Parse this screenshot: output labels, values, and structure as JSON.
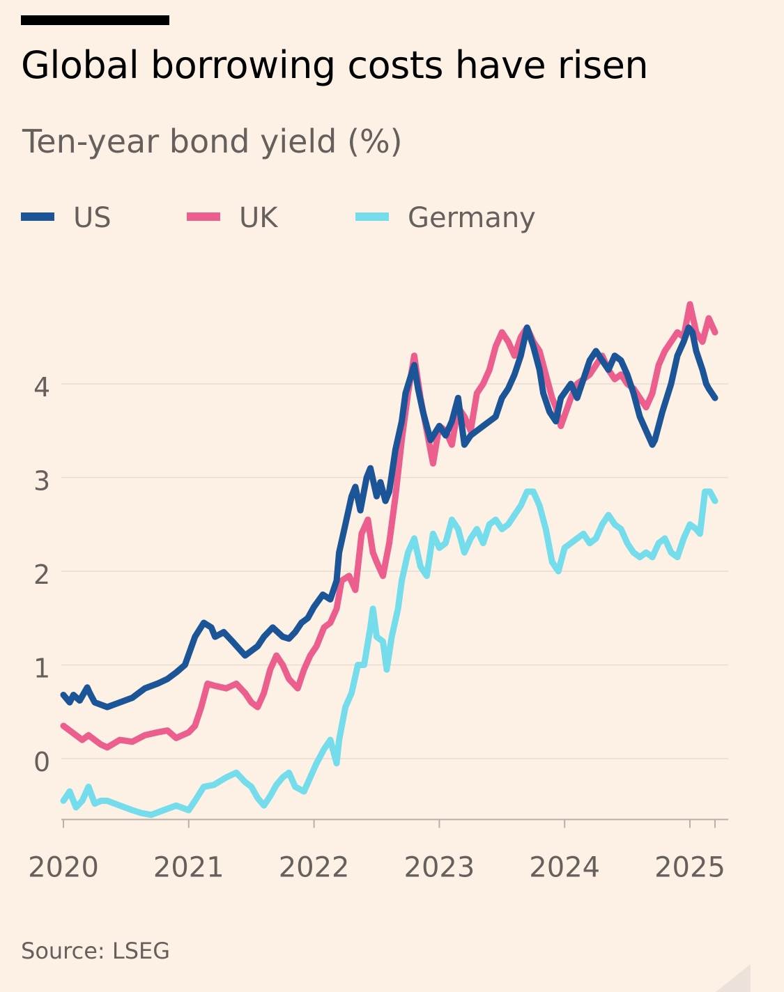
{
  "title": "Global borrowing costs have risen",
  "subtitle": "Ten-year bond yield (%)",
  "source": "Source: LSEG",
  "colors": {
    "US": "#1b5497",
    "UK": "#eb5e8d",
    "Germany": "#75dcec",
    "background": "#fdf1e6",
    "grid": "#e8dbd0",
    "axis": "#66605c"
  },
  "legend": [
    {
      "label": "US",
      "color": "#1b5497"
    },
    {
      "label": "UK",
      "color": "#eb5e8d"
    },
    {
      "label": "Germany",
      "color": "#75dcec"
    }
  ],
  "chart_data": {
    "type": "line",
    "title": "Global borrowing costs have risen",
    "subtitle": "Ten-year bond yield (%)",
    "xlabel": "",
    "ylabel": "",
    "xlim": [
      2020.0,
      2025.2
    ],
    "ylim": [
      -0.65,
      4.9
    ],
    "yticks": [
      0,
      1,
      2,
      3,
      4
    ],
    "yticklabels": [
      "0",
      "1",
      "2",
      "3",
      "4"
    ],
    "xticks": [
      2020,
      2021,
      2022,
      2023,
      2024,
      2025
    ],
    "xticklabels": [
      "2020",
      "2021",
      "2022",
      "2023",
      "2024",
      "2025"
    ],
    "grid": true,
    "legend_position": "top-left",
    "series": [
      {
        "name": "US",
        "x": [
          2020.0,
          2020.05,
          2020.08,
          2020.13,
          2020.19,
          2020.21,
          2020.25,
          2020.35,
          2020.45,
          2020.55,
          2020.65,
          2020.75,
          2020.83,
          2020.9,
          2020.97,
          2021.05,
          2021.12,
          2021.18,
          2021.21,
          2021.28,
          2021.35,
          2021.45,
          2021.55,
          2021.6,
          2021.67,
          2021.75,
          2021.8,
          2021.85,
          2021.9,
          2021.95,
          2022.0,
          2022.07,
          2022.13,
          2022.18,
          2022.2,
          2022.25,
          2022.3,
          2022.33,
          2022.37,
          2022.42,
          2022.45,
          2022.5,
          2022.53,
          2022.57,
          2022.6,
          2022.65,
          2022.7,
          2022.73,
          2022.8,
          2022.83,
          2022.87,
          2022.93,
          2023.0,
          2023.05,
          2023.1,
          2023.15,
          2023.2,
          2023.25,
          2023.3,
          2023.35,
          2023.45,
          2023.5,
          2023.55,
          2023.6,
          2023.65,
          2023.7,
          2023.75,
          2023.8,
          2023.83,
          2023.88,
          2023.93,
          2023.97,
          2024.05,
          2024.1,
          2024.15,
          2024.2,
          2024.25,
          2024.3,
          2024.35,
          2024.4,
          2024.45,
          2024.5,
          2024.55,
          2024.6,
          2024.65,
          2024.7,
          2024.72,
          2024.78,
          2024.85,
          2024.9,
          2024.95,
          2024.99,
          2025.02,
          2025.05,
          2025.1,
          2025.13,
          2025.15,
          2025.2
        ],
        "values": [
          0.68,
          0.6,
          0.68,
          0.62,
          0.76,
          0.7,
          0.6,
          0.55,
          0.6,
          0.65,
          0.75,
          0.8,
          0.85,
          0.92,
          1.0,
          1.3,
          1.45,
          1.4,
          1.3,
          1.35,
          1.25,
          1.1,
          1.2,
          1.3,
          1.4,
          1.3,
          1.28,
          1.35,
          1.45,
          1.5,
          1.62,
          1.75,
          1.7,
          1.9,
          2.2,
          2.5,
          2.8,
          2.9,
          2.65,
          3.0,
          3.1,
          2.8,
          2.95,
          2.75,
          2.85,
          3.3,
          3.6,
          3.9,
          4.2,
          3.95,
          3.7,
          3.4,
          3.55,
          3.45,
          3.6,
          3.85,
          3.35,
          3.45,
          3.5,
          3.55,
          3.65,
          3.85,
          3.95,
          4.1,
          4.3,
          4.6,
          4.4,
          4.15,
          3.9,
          3.7,
          3.6,
          3.85,
          4.0,
          3.85,
          4.05,
          4.25,
          4.35,
          4.25,
          4.15,
          4.3,
          4.25,
          4.1,
          3.9,
          3.65,
          3.5,
          3.35,
          3.4,
          3.7,
          4.0,
          4.3,
          4.45,
          4.6,
          4.55,
          4.35,
          4.15,
          4.0,
          3.95,
          3.85
        ]
      },
      {
        "name": "UK",
        "x": [
          2020.0,
          2020.05,
          2020.1,
          2020.15,
          2020.2,
          2020.25,
          2020.3,
          2020.35,
          2020.45,
          2020.55,
          2020.65,
          2020.75,
          2020.83,
          2020.9,
          2021.0,
          2021.05,
          2021.1,
          2021.15,
          2021.2,
          2021.3,
          2021.38,
          2021.45,
          2021.5,
          2021.55,
          2021.6,
          2021.65,
          2021.7,
          2021.75,
          2021.8,
          2021.87,
          2021.92,
          2021.97,
          2022.02,
          2022.08,
          2022.13,
          2022.18,
          2022.22,
          2022.28,
          2022.33,
          2022.38,
          2022.43,
          2022.47,
          2022.5,
          2022.55,
          2022.6,
          2022.65,
          2022.7,
          2022.75,
          2022.8,
          2022.85,
          2022.9,
          2022.95,
          2023.0,
          2023.05,
          2023.1,
          2023.15,
          2023.2,
          2023.25,
          2023.3,
          2023.35,
          2023.4,
          2023.45,
          2023.5,
          2023.55,
          2023.6,
          2023.65,
          2023.7,
          2023.75,
          2023.8,
          2023.85,
          2023.9,
          2023.93,
          2023.97,
          2024.05,
          2024.1,
          2024.15,
          2024.2,
          2024.25,
          2024.3,
          2024.35,
          2024.4,
          2024.45,
          2024.5,
          2024.55,
          2024.6,
          2024.65,
          2024.7,
          2024.75,
          2024.8,
          2024.85,
          2024.9,
          2024.95,
          2025.0,
          2025.05,
          2025.1,
          2025.15,
          2025.2
        ],
        "values": [
          0.35,
          0.3,
          0.25,
          0.2,
          0.25,
          0.2,
          0.15,
          0.12,
          0.2,
          0.18,
          0.25,
          0.28,
          0.3,
          0.22,
          0.28,
          0.35,
          0.55,
          0.8,
          0.78,
          0.75,
          0.8,
          0.7,
          0.6,
          0.55,
          0.7,
          0.95,
          1.1,
          1.0,
          0.85,
          0.75,
          0.95,
          1.1,
          1.2,
          1.4,
          1.45,
          1.6,
          1.9,
          1.95,
          1.8,
          2.4,
          2.55,
          2.2,
          2.1,
          1.95,
          2.3,
          2.8,
          3.4,
          3.9,
          4.3,
          3.85,
          3.5,
          3.15,
          3.55,
          3.5,
          3.35,
          3.75,
          3.65,
          3.5,
          3.9,
          4.0,
          4.15,
          4.4,
          4.55,
          4.45,
          4.3,
          4.5,
          4.6,
          4.45,
          4.35,
          4.1,
          3.85,
          3.75,
          3.55,
          3.85,
          4.0,
          4.05,
          4.1,
          4.2,
          4.3,
          4.15,
          4.05,
          4.1,
          4.0,
          3.95,
          3.85,
          3.75,
          3.9,
          4.2,
          4.35,
          4.45,
          4.55,
          4.5,
          4.85,
          4.55,
          4.45,
          4.7,
          4.55
        ]
      },
      {
        "name": "Germany",
        "x": [
          2020.0,
          2020.05,
          2020.1,
          2020.15,
          2020.2,
          2020.25,
          2020.3,
          2020.35,
          2020.45,
          2020.55,
          2020.62,
          2020.7,
          2020.8,
          2020.9,
          2021.0,
          2021.05,
          2021.12,
          2021.2,
          2021.3,
          2021.38,
          2021.45,
          2021.5,
          2021.55,
          2021.6,
          2021.65,
          2021.7,
          2021.75,
          2021.8,
          2021.85,
          2021.92,
          2021.97,
          2022.02,
          2022.08,
          2022.13,
          2022.18,
          2022.2,
          2022.25,
          2022.3,
          2022.35,
          2022.4,
          2022.45,
          2022.47,
          2022.5,
          2022.55,
          2022.58,
          2022.62,
          2022.67,
          2022.7,
          2022.75,
          2022.8,
          2022.85,
          2022.9,
          2022.95,
          2023.0,
          2023.05,
          2023.1,
          2023.15,
          2023.2,
          2023.25,
          2023.3,
          2023.35,
          2023.4,
          2023.45,
          2023.5,
          2023.55,
          2023.6,
          2023.65,
          2023.7,
          2023.75,
          2023.8,
          2023.85,
          2023.9,
          2023.95,
          2024.0,
          2024.05,
          2024.1,
          2024.15,
          2024.2,
          2024.25,
          2024.3,
          2024.35,
          2024.4,
          2024.45,
          2024.5,
          2024.55,
          2024.6,
          2024.65,
          2024.7,
          2024.75,
          2024.8,
          2024.85,
          2024.9,
          2024.95,
          2025.0,
          2025.05,
          2025.08,
          2025.12,
          2025.16,
          2025.2
        ],
        "values": [
          -0.45,
          -0.35,
          -0.52,
          -0.45,
          -0.3,
          -0.48,
          -0.45,
          -0.45,
          -0.5,
          -0.55,
          -0.58,
          -0.6,
          -0.55,
          -0.5,
          -0.55,
          -0.45,
          -0.3,
          -0.28,
          -0.2,
          -0.15,
          -0.25,
          -0.3,
          -0.42,
          -0.5,
          -0.4,
          -0.28,
          -0.2,
          -0.15,
          -0.3,
          -0.35,
          -0.2,
          -0.05,
          0.1,
          0.2,
          -0.05,
          0.2,
          0.55,
          0.7,
          1.0,
          1.0,
          1.4,
          1.6,
          1.3,
          1.25,
          0.95,
          1.3,
          1.6,
          1.9,
          2.2,
          2.35,
          2.05,
          1.95,
          2.4,
          2.25,
          2.3,
          2.55,
          2.45,
          2.2,
          2.35,
          2.45,
          2.3,
          2.5,
          2.55,
          2.45,
          2.5,
          2.6,
          2.7,
          2.85,
          2.85,
          2.7,
          2.45,
          2.1,
          2.0,
          2.25,
          2.3,
          2.35,
          2.4,
          2.3,
          2.35,
          2.5,
          2.6,
          2.5,
          2.45,
          2.3,
          2.2,
          2.15,
          2.2,
          2.15,
          2.3,
          2.35,
          2.2,
          2.15,
          2.35,
          2.5,
          2.45,
          2.4,
          2.85,
          2.85,
          2.75
        ]
      }
    ]
  }
}
